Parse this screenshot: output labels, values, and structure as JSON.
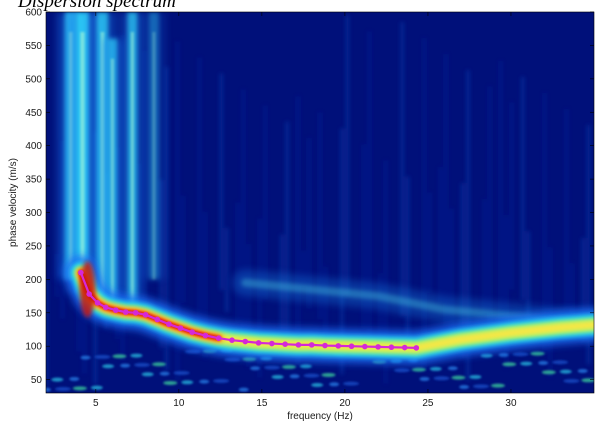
{
  "header": {
    "partial_text": "Dispersion spectrum"
  },
  "chart_data": {
    "type": "heatmap",
    "title": "",
    "xlabel": "frequency (Hz)",
    "ylabel": "phase velocity (m/s)",
    "xlim": [
      2,
      35
    ],
    "ylim": [
      30,
      600
    ],
    "x_ticks": [
      5,
      10,
      15,
      20,
      25,
      30
    ],
    "y_ticks": [
      50,
      100,
      150,
      200,
      250,
      300,
      350,
      400,
      450,
      500,
      550,
      600
    ],
    "colormap": "jet",
    "background_color": "#00107a",
    "curve_color": "#d528d8",
    "picked_curve": {
      "name": "",
      "x": [
        4.1,
        4.6,
        5.1,
        5.6,
        6.2,
        6.8,
        7.4,
        8.0,
        8.7,
        9.4,
        10.1,
        10.8,
        11.6,
        12.4,
        13.2,
        14.0,
        14.8,
        15.6,
        16.4,
        17.2,
        18.0,
        18.8,
        19.6,
        20.4,
        21.2,
        22.0,
        22.8,
        23.6,
        24.3
      ],
      "y": [
        210,
        178,
        165,
        158,
        154,
        151,
        150,
        147,
        140,
        133,
        127,
        121,
        116,
        112,
        109,
        107,
        105,
        104,
        103,
        102,
        102,
        101,
        100.5,
        100,
        99.5,
        99,
        98.5,
        98,
        97.5
      ]
    },
    "spectrum": {
      "vertical_bands": [
        {
          "x": 3.5,
          "width": 0.35,
          "v_from": 200,
          "v_to": 600,
          "intensity": 0.75
        },
        {
          "x": 4.2,
          "width": 0.4,
          "v_from": 180,
          "v_to": 600,
          "intensity": 0.8
        },
        {
          "x": 5.4,
          "width": 0.35,
          "v_from": 160,
          "v_to": 600,
          "intensity": 0.7
        },
        {
          "x": 6.0,
          "width": 0.3,
          "v_from": 170,
          "v_to": 560,
          "intensity": 0.6
        },
        {
          "x": 7.2,
          "width": 0.3,
          "v_from": 150,
          "v_to": 600,
          "intensity": 0.65
        },
        {
          "x": 8.5,
          "width": 0.3,
          "v_from": 200,
          "v_to": 600,
          "intensity": 0.35
        }
      ],
      "secondary_ridge": {
        "x": [
          14,
          18,
          22,
          26,
          30,
          35
        ],
        "y": [
          195,
          185,
          175,
          155,
          145,
          133
        ],
        "intensity": 0.5
      }
    }
  }
}
